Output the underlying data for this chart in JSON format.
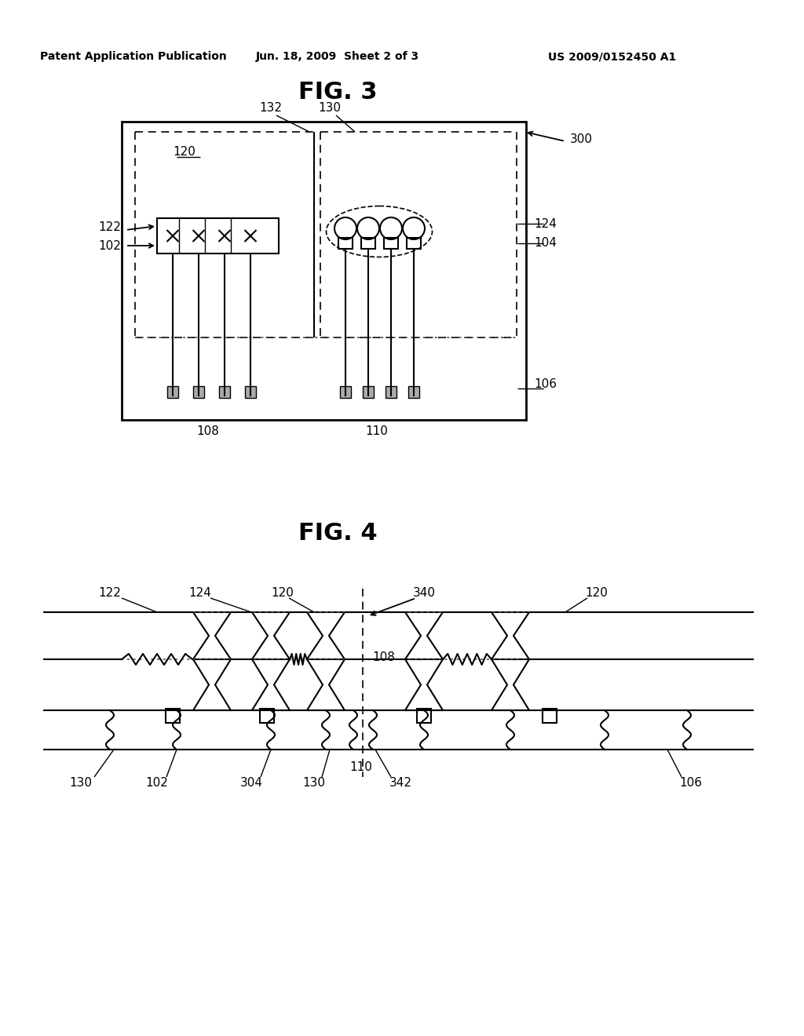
{
  "bg_color": "#ffffff",
  "header_left": "Patent Application Publication",
  "header_mid": "Jun. 18, 2009  Sheet 2 of 3",
  "header_right": "US 2009/0152450 A1",
  "fig3_title": "FIG. 3",
  "fig4_title": "FIG. 4",
  "text_color": "#000000",
  "line_color": "#000000"
}
